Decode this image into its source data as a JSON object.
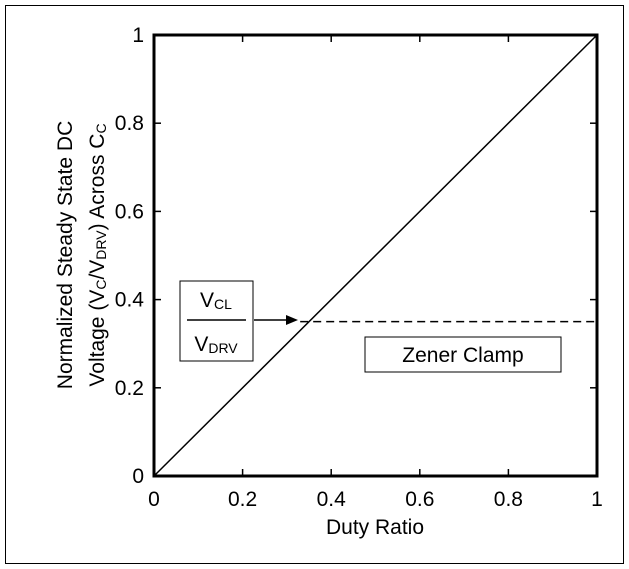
{
  "chart_data": {
    "type": "line",
    "xlabel": "Duty Ratio",
    "ylabel_line1": "Normalized Steady State DC",
    "ylabel_line2": [
      "Voltage (V",
      "C",
      "/V",
      "DRV",
      ") Across C",
      "C"
    ],
    "xlim": [
      0,
      1
    ],
    "ylim": [
      0,
      1
    ],
    "xticks": [
      0,
      0.2,
      0.4,
      0.6,
      0.8,
      1
    ],
    "yticks": [
      0,
      0.2,
      0.4,
      0.6,
      0.8,
      1
    ],
    "series": [
      {
        "color": "#000000",
        "style": "solid",
        "x": [
          0,
          1
        ],
        "y": [
          0,
          1
        ]
      },
      {
        "color": "#000000",
        "style": "dashed",
        "x": [
          0.33,
          1
        ],
        "y": [
          0.35,
          0.35
        ]
      }
    ],
    "fraction": {
      "numerator": [
        "V",
        "CL"
      ],
      "denominator": [
        "V",
        "DRV"
      ]
    },
    "zener_label": "Zener Clamp"
  }
}
